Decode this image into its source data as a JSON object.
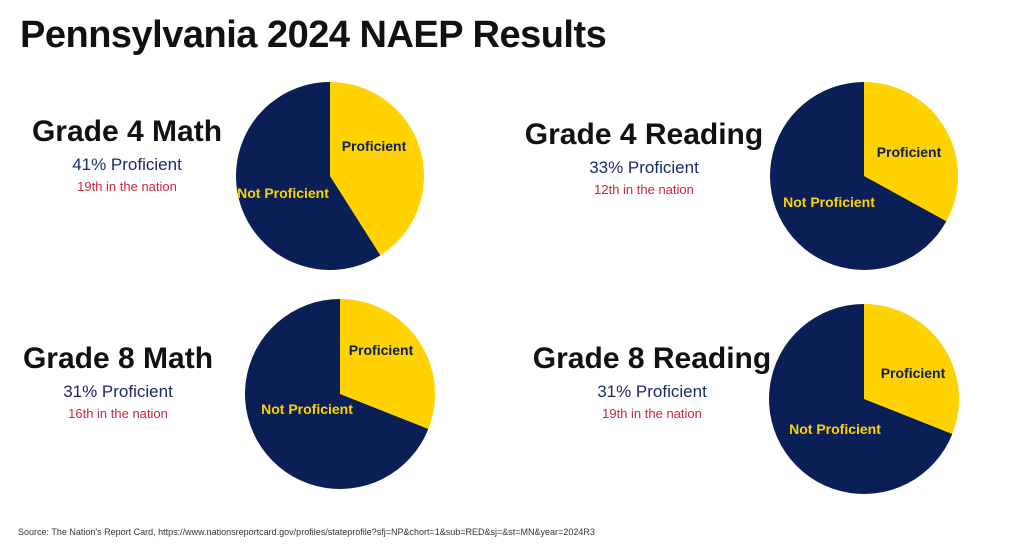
{
  "title": "Pennsylvania 2024 NAEP Results",
  "source": "Source: The Nation's Report Card, https://www.nationsreportcard.gov/profiles/stateprofile?sfj=NP&chort=1&sub=RED&sj=&st=MN&year=2024R3",
  "colors": {
    "proficient": "#ffd200",
    "not_proficient": "#0b1f57",
    "label_on_yellow": "#0b1f57",
    "label_on_navy": "#ffd200"
  },
  "chart_data": [
    {
      "type": "pie",
      "title": "Grade 4 Math",
      "stat": "41% Proficient",
      "rank": "19th in the nation",
      "categories": [
        "Proficient",
        "Not Proficient"
      ],
      "values": [
        41,
        59
      ]
    },
    {
      "type": "pie",
      "title": "Grade 4 Reading",
      "stat": "33% Proficient",
      "rank": "12th in the nation",
      "categories": [
        "Proficient",
        "Not Proficient"
      ],
      "values": [
        33,
        67
      ]
    },
    {
      "type": "pie",
      "title": "Grade 8 Math",
      "stat": "31% Proficient",
      "rank": "16th in the nation",
      "categories": [
        "Proficient",
        "Not Proficient"
      ],
      "values": [
        31,
        69
      ]
    },
    {
      "type": "pie",
      "title": "Grade 8 Reading",
      "stat": "31% Proficient",
      "rank": "19th in the nation",
      "categories": [
        "Proficient",
        "Not Proficient"
      ],
      "values": [
        31,
        69
      ]
    }
  ]
}
